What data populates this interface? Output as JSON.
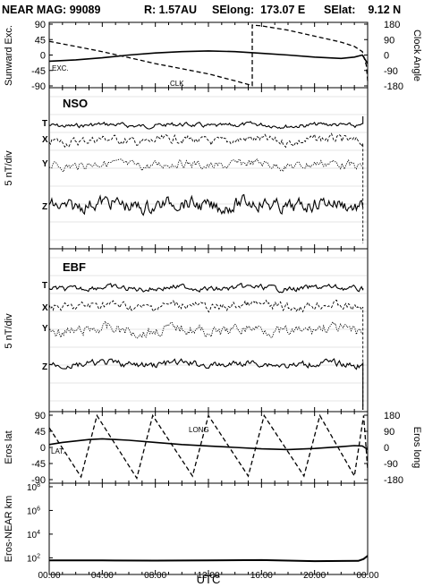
{
  "header": {
    "title": "NEAR MAG: 99089",
    "distance": "R: 1.57AU",
    "selong": "SElong:  173.07 E",
    "selat": "SElat:    9.12 N"
  },
  "xaxis": {
    "label": "UTC",
    "ticks": [
      "00:00",
      "04:00",
      "08:00",
      "12:00",
      "16:00",
      "20:00",
      "00:00"
    ]
  },
  "chart_data": [
    {
      "type": "line",
      "name": "sunward-clock",
      "x_range_hours": [
        0,
        24
      ],
      "left_axis": {
        "label": "Sunward Exc.",
        "ticks": [
          "90",
          "45",
          "0",
          "-45",
          "-90"
        ],
        "range": [
          -90,
          90
        ]
      },
      "right_axis": {
        "label": "Clock Angle",
        "ticks": [
          "180",
          "90",
          "0",
          "-90",
          "-180"
        ],
        "range": [
          -180,
          180
        ]
      },
      "annotations": [
        "EXC.",
        "CLK"
      ],
      "series": [
        {
          "name": "EXC.",
          "axis": "left",
          "style": "solid",
          "x": [
            0,
            2,
            4,
            6,
            8,
            10,
            12,
            14,
            16,
            18,
            20,
            21,
            22,
            23,
            23.6,
            24
          ],
          "y": [
            -18,
            -14,
            -8,
            0,
            6,
            10,
            12,
            10,
            5,
            0,
            -6,
            -8,
            -10,
            -6,
            0,
            -25
          ]
        },
        {
          "name": "CLK",
          "axis": "right",
          "style": "dashed",
          "x": [
            0,
            2,
            4,
            6,
            8,
            10,
            12,
            14,
            15.3,
            15.3,
            16,
            18,
            20,
            22,
            23,
            23.6,
            23.9,
            24
          ],
          "y": [
            80,
            50,
            20,
            -15,
            -50,
            -80,
            -110,
            -150,
            -178,
            175,
            170,
            145,
            110,
            75,
            50,
            20,
            -60,
            -150
          ]
        }
      ]
    },
    {
      "type": "line",
      "name": "nso",
      "title": "NSO",
      "ylabel": "5 nT/div",
      "series_labels": [
        "T",
        "X",
        "Y",
        "Z"
      ]
    },
    {
      "type": "line",
      "name": "ebf",
      "title": "EBF",
      "ylabel": "5 nT/div",
      "series_labels": [
        "T",
        "X",
        "Y",
        "Z"
      ]
    },
    {
      "type": "line",
      "name": "eros-position",
      "x_range_hours": [
        0,
        24
      ],
      "left_axis": {
        "label": "Eros lat",
        "ticks": [
          "90",
          "45",
          "0",
          "-45",
          "-90"
        ],
        "range": [
          -90,
          90
        ]
      },
      "right_axis": {
        "label": "Eros long",
        "ticks": [
          "180",
          "90",
          "0",
          "-90",
          "-180"
        ],
        "range": [
          -180,
          180
        ]
      },
      "annotations": [
        "LAT.",
        "LONG"
      ],
      "series": [
        {
          "name": "LAT.",
          "axis": "left",
          "style": "solid",
          "x": [
            0,
            1,
            2,
            3,
            4,
            6,
            8,
            10,
            12,
            14,
            16,
            18,
            20,
            22,
            23,
            23.6,
            24
          ],
          "y": [
            8,
            14,
            18,
            22,
            24,
            20,
            14,
            8,
            4,
            0,
            -4,
            -6,
            -3,
            2,
            5,
            4,
            -6
          ]
        },
        {
          "name": "LONG",
          "axis": "right",
          "style": "dashed",
          "x": [
            0,
            2.4,
            3.6,
            3.6,
            6.6,
            7.8,
            7.8,
            10.8,
            12,
            12,
            15,
            16.2,
            16.2,
            19.2,
            20.4,
            20.4,
            23.0,
            23.7,
            23.7,
            24
          ],
          "y": [
            110,
            -165,
            178,
            178,
            -172,
            178,
            178,
            -160,
            178,
            178,
            -160,
            178,
            178,
            -160,
            178,
            178,
            -160,
            178,
            178,
            -120
          ]
        }
      ]
    },
    {
      "type": "line",
      "name": "eros-near-distance",
      "x_range_hours": [
        0,
        24
      ],
      "left_axis": {
        "label": "Eros-NEAR km",
        "ticks": [
          "10^8",
          "10^6",
          "10^4",
          "10^2"
        ],
        "scale": "log"
      },
      "series": [
        {
          "name": "distance",
          "style": "solid",
          "x": [
            0,
            4,
            8,
            12,
            16,
            20,
            23.3,
            23.7,
            24
          ],
          "y": [
            60,
            60,
            58,
            60,
            65,
            52,
            55,
            80,
            150
          ]
        }
      ]
    }
  ]
}
